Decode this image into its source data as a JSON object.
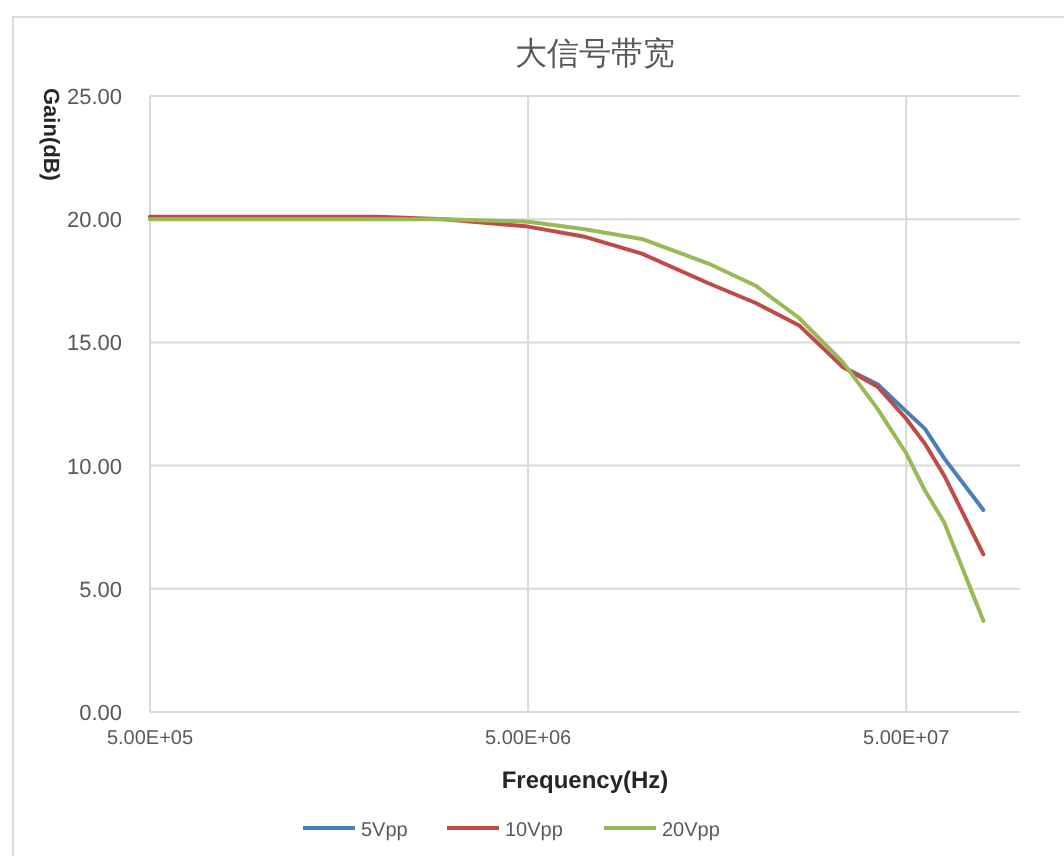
{
  "chart_data": {
    "type": "line",
    "title": "大信号带宽",
    "xlabel": "Frequency(Hz)",
    "ylabel": "Gain(dB)",
    "log": "x",
    "grid": true,
    "legend": "bottom",
    "line_style": "solid",
    "x": [
      500000,
      1000000,
      2000000,
      3000000,
      5000000,
      7000000,
      10000000,
      15000000,
      20000000,
      26000000,
      34000000,
      42000000,
      50000000,
      56000000,
      63000000,
      80000000
    ],
    "xlim": [
      500000,
      100000000
    ],
    "xticks": [
      {
        "value": 500000,
        "label": "5.00E+05"
      },
      {
        "value": 5000000,
        "label": "5.00E+06"
      },
      {
        "value": 50000000,
        "label": "5.00E+07"
      }
    ],
    "ylim": [
      0,
      25
    ],
    "yticks": [
      {
        "value": 0,
        "label": "0.00"
      },
      {
        "value": 5,
        "label": "5.00"
      },
      {
        "value": 10,
        "label": "10.00"
      },
      {
        "value": 15,
        "label": "15.00"
      },
      {
        "value": 20,
        "label": "20.00"
      },
      {
        "value": 25,
        "label": "25.00"
      }
    ],
    "series": [
      {
        "name": "5Vpp",
        "color": "#4a7ebb",
        "values": [
          null,
          null,
          null,
          null,
          null,
          null,
          null,
          null,
          null,
          null,
          14.0,
          13.3,
          12.2,
          11.5,
          10.3,
          8.2
        ]
      },
      {
        "name": "10Vpp",
        "color": "#be4b48",
        "values": [
          20.1,
          20.1,
          20.1,
          20.0,
          19.7,
          19.3,
          18.6,
          17.4,
          16.6,
          15.7,
          14.0,
          13.2,
          11.9,
          10.9,
          9.6,
          6.4
        ]
      },
      {
        "name": "20Vpp",
        "color": "#98b954",
        "values": [
          20.0,
          20.0,
          20.0,
          20.0,
          19.9,
          19.6,
          19.2,
          18.2,
          17.3,
          16.0,
          14.2,
          12.3,
          10.5,
          9.0,
          7.7,
          3.7
        ]
      }
    ]
  }
}
